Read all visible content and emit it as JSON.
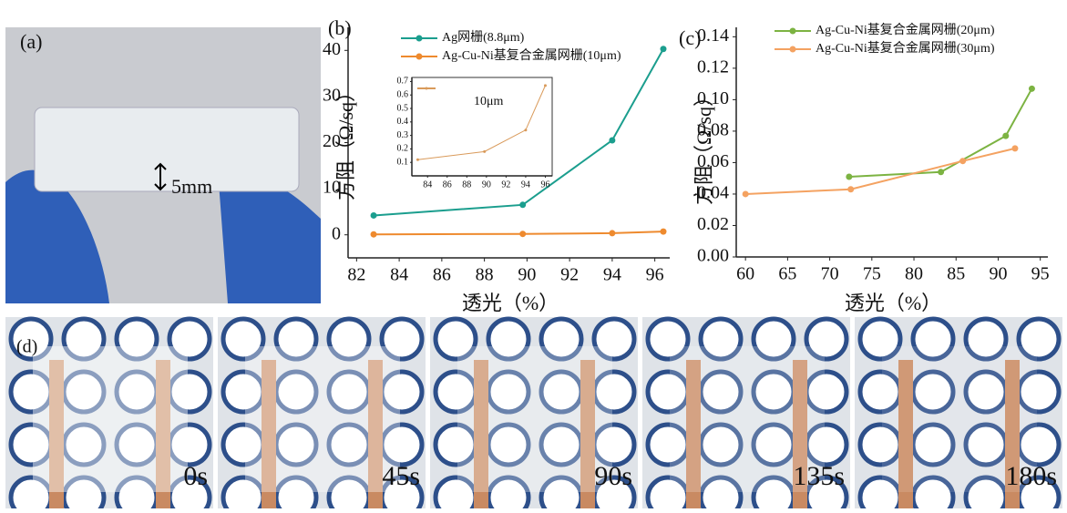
{
  "photos": {
    "a_label": "(a)",
    "thickness": "5mm",
    "d_label": "(d)",
    "times": [
      "0s",
      "45s",
      "90s",
      "135s",
      "180s"
    ]
  },
  "chart_data": [
    {
      "type": "line",
      "panel_label": "(b)",
      "xlabel": "透光（%）",
      "ylabel": "方阻（Ω/sq）",
      "xlim": [
        81.6,
        96.7
      ],
      "ylim": [
        -5,
        45
      ],
      "xticks": [
        82,
        84,
        86,
        88,
        90,
        92,
        94,
        96
      ],
      "yticks": [
        0,
        10,
        20,
        30,
        40
      ],
      "series": [
        {
          "name": "Ag网栅(8.8μm)",
          "color": "#1b9e8e",
          "x": [
            82.8,
            89.8,
            94,
            96.4
          ],
          "values": [
            4.2,
            6.5,
            20.5,
            40.3
          ]
        },
        {
          "name": "Ag-Cu-Ni基复合金属网栅(10μm)",
          "color": "#ee8a2e",
          "x": [
            82.8,
            89.8,
            94,
            96.4
          ],
          "values": [
            0.1,
            0.2,
            0.35,
            0.7
          ]
        }
      ]
    },
    {
      "type": "line",
      "xlim": [
        82.4,
        96.7
      ],
      "ylim": [
        0,
        0.73
      ],
      "xticks": [
        84,
        86,
        88,
        90,
        92,
        94,
        96
      ],
      "yticks": [
        0.1,
        0.2,
        0.3,
        0.4,
        0.5,
        0.6,
        0.7
      ],
      "series": [
        {
          "name": "10μm",
          "color": "#d99a5a",
          "x": [
            83,
            89.8,
            94,
            96
          ],
          "values": [
            0.12,
            0.18,
            0.34,
            0.67
          ]
        }
      ]
    },
    {
      "type": "line",
      "panel_label": "(c)",
      "xlabel": "透光（%）",
      "ylabel": "方阻（Ω/sq）",
      "xlim": [
        58.9,
        95.9
      ],
      "ylim": [
        0,
        0.146
      ],
      "xticks": [
        60,
        65,
        70,
        75,
        80,
        85,
        90,
        95
      ],
      "yticks": [
        {
          "value": 0,
          "label": "0.00"
        },
        {
          "value": 0.02,
          "label": "0.02"
        },
        {
          "value": 0.04,
          "label": "0.04"
        },
        {
          "value": 0.06,
          "label": "0.06"
        },
        {
          "value": 0.08,
          "label": "0.08"
        },
        {
          "value": 0.1,
          "label": "0.10"
        },
        {
          "value": 0.12,
          "label": "0.12"
        },
        {
          "value": 0.14,
          "label": "0.14"
        }
      ],
      "series": [
        {
          "name": "Ag-Cu-Ni基复合金属网栅(20μm)",
          "color": "#7cb342",
          "x": [
            72.3,
            83.2,
            90.9,
            94
          ],
          "values": [
            0.051,
            0.054,
            0.077,
            0.107
          ]
        },
        {
          "name": "Ag-Cu-Ni基复合金属网栅(30μm)",
          "color": "#f4a261",
          "x": [
            60,
            72.5,
            85.8,
            92
          ],
          "values": [
            0.04,
            0.043,
            0.061,
            0.069
          ]
        }
      ]
    }
  ]
}
